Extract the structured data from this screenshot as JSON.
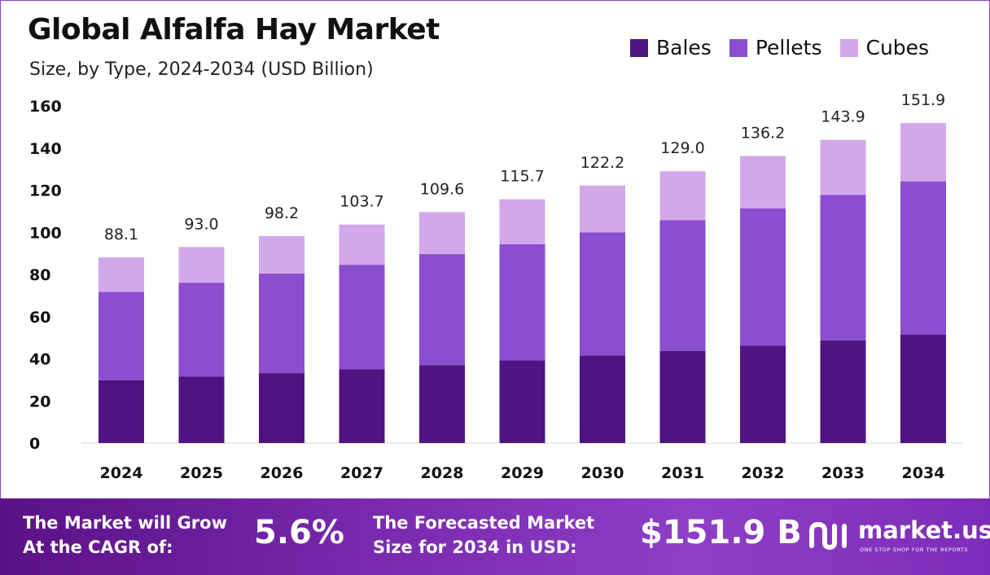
{
  "header": {
    "title": "Global Alfalfa Hay Market",
    "subtitle": "Size, by Type, 2024-2034 (USD Billion)"
  },
  "legend": [
    {
      "label": "Bales",
      "color": "#4e1480"
    },
    {
      "label": "Pellets",
      "color": "#8a4ecf"
    },
    {
      "label": "Cubes",
      "color": "#d2a8eb"
    }
  ],
  "chart_data": {
    "type": "bar",
    "stacked": true,
    "categories": [
      "2024",
      "2025",
      "2026",
      "2027",
      "2028",
      "2029",
      "2030",
      "2031",
      "2032",
      "2033",
      "2034"
    ],
    "series": [
      {
        "name": "Bales",
        "color": "#4e1480",
        "values": [
          29.8,
          31.5,
          33.2,
          35.0,
          37.0,
          39.3,
          41.5,
          43.8,
          46.2,
          48.8,
          51.4
        ]
      },
      {
        "name": "Pellets",
        "color": "#8a4ecf",
        "values": [
          42.0,
          44.6,
          47.2,
          49.6,
          52.7,
          55.0,
          58.5,
          61.9,
          65.1,
          69.0,
          72.8
        ]
      },
      {
        "name": "Cubes",
        "color": "#d2a8eb",
        "values": [
          16.3,
          16.9,
          17.8,
          19.1,
          19.9,
          21.4,
          22.2,
          23.3,
          24.9,
          26.1,
          27.7
        ]
      }
    ],
    "totals": [
      "88.1",
      "93.0",
      "98.2",
      "103.7",
      "109.6",
      "115.7",
      "122.2",
      "129.0",
      "136.2",
      "143.9",
      "151.9"
    ],
    "y_ticks": [
      0,
      20,
      40,
      60,
      80,
      100,
      120,
      140,
      160
    ],
    "ylim": [
      0,
      160
    ],
    "xlabel": "",
    "ylabel": "",
    "grid": false,
    "legend_position": "top-right"
  },
  "footer": {
    "cagr_label_line1": "The Market will Grow",
    "cagr_label_line2": "At the CAGR of:",
    "cagr_value": "5.6%",
    "forecast_label_line1": "The Forecasted Market",
    "forecast_label_line2": "Size for 2034 in USD:",
    "forecast_value": "$151.9 B",
    "brand": "market.us",
    "brand_tagline": "ONE STOP SHOP FOR THE REPORTS"
  }
}
